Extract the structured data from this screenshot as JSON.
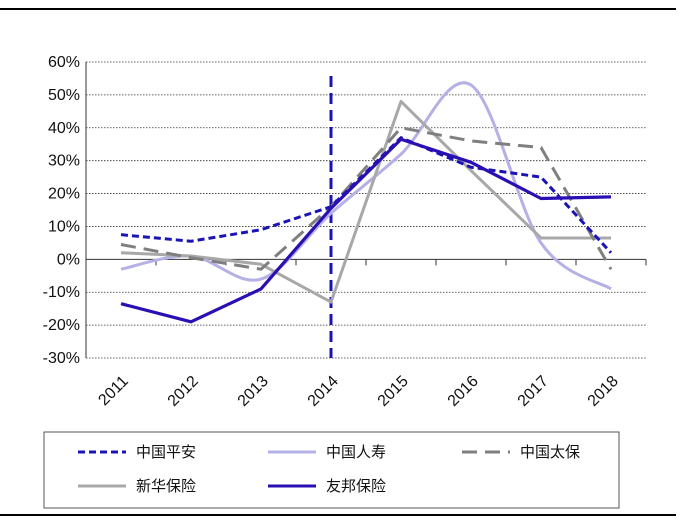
{
  "chart_data": {
    "type": "line",
    "x": [
      "2011",
      "2012",
      "2013",
      "2014",
      "2015",
      "2016",
      "2017",
      "2018"
    ],
    "y_ticks": [
      "60%",
      "50%",
      "40%",
      "30%",
      "20%",
      "10%",
      "0%",
      "-10%",
      "-20%",
      "-30%"
    ],
    "ylim": [
      -30,
      60
    ],
    "grid": "horizontal dotted",
    "marker_line": {
      "x": "2014",
      "style": "dashed",
      "color": "#1b14b4"
    },
    "legend_position": "bottom",
    "series": [
      {
        "name": "中国平安",
        "color": "#1b14b4",
        "style": "dashed",
        "values": [
          7.5,
          5.5,
          9,
          16,
          37,
          28,
          25,
          2
        ]
      },
      {
        "name": "中国人寿",
        "color": "#b5b0e6",
        "style": "solid",
        "smooth": true,
        "values": [
          -3,
          1,
          -6,
          14,
          32,
          53,
          5,
          -9
        ]
      },
      {
        "name": "中国太保",
        "color": "#7f7f7f",
        "style": "dashed",
        "values": [
          4.5,
          0.5,
          -3,
          16,
          40,
          36,
          34,
          -3
        ]
      },
      {
        "name": "新华保险",
        "color": "#a8a8a8",
        "style": "solid",
        "values": [
          2,
          1,
          -1.5,
          -13,
          48,
          27,
          6.5,
          6.5
        ]
      },
      {
        "name": "友邦保险",
        "color": "#2a0fb4",
        "style": "solid",
        "values": [
          -13.5,
          -19,
          -9,
          15.5,
          36.5,
          29.5,
          18.5,
          19
        ]
      }
    ]
  }
}
